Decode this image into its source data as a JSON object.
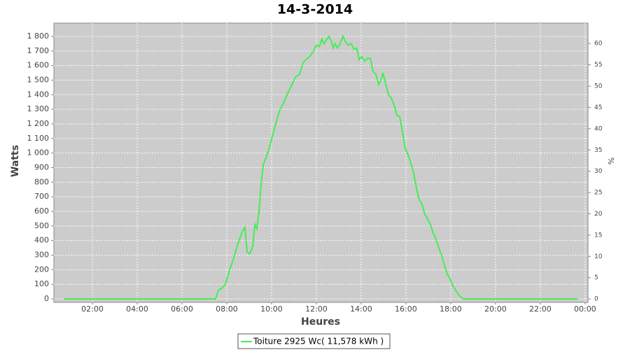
{
  "chart_data": {
    "type": "line",
    "title": "14-3-2014",
    "xlabel": "Heures",
    "ylabel": "Watts",
    "y2label": "%",
    "x": [
      0.72,
      7.5,
      7.63,
      7.75,
      7.94,
      8.13,
      8.31,
      8.5,
      8.69,
      8.81,
      8.91,
      9.03,
      9.16,
      9.25,
      9.34,
      9.44,
      9.53,
      9.63,
      9.78,
      9.91,
      10.06,
      10.22,
      10.38,
      10.53,
      10.69,
      10.88,
      11.06,
      11.25,
      11.41,
      11.53,
      11.69,
      11.88,
      12.0,
      12.13,
      12.25,
      12.34,
      12.47,
      12.56,
      12.66,
      12.75,
      12.84,
      12.94,
      13.06,
      13.19,
      13.31,
      13.44,
      13.56,
      13.69,
      13.81,
      13.91,
      14.03,
      14.16,
      14.28,
      14.41,
      14.53,
      14.66,
      14.78,
      14.91,
      14.97,
      15.09,
      15.22,
      15.34,
      15.47,
      15.59,
      15.72,
      15.84,
      15.97,
      16.09,
      16.22,
      16.34,
      16.47,
      16.59,
      16.72,
      16.84,
      16.97,
      17.09,
      17.22,
      17.34,
      17.47,
      17.59,
      17.72,
      17.84,
      17.97,
      18.09,
      18.22,
      18.34,
      18.47,
      18.59,
      23.69
    ],
    "series": [
      {
        "name": "Toiture 2925 Wc( 11,578 kWh )",
        "color": "#44ee55",
        "values": [
          0,
          0,
          60,
          70,
          100,
          200,
          280,
          380,
          460,
          490,
          320,
          310,
          360,
          510,
          480,
          600,
          780,
          920,
          980,
          1040,
          1130,
          1220,
          1300,
          1340,
          1400,
          1460,
          1520,
          1540,
          1620,
          1640,
          1660,
          1700,
          1740,
          1730,
          1780,
          1750,
          1780,
          1800,
          1770,
          1720,
          1750,
          1720,
          1750,
          1800,
          1760,
          1740,
          1750,
          1710,
          1720,
          1640,
          1660,
          1630,
          1650,
          1650,
          1560,
          1540,
          1470,
          1510,
          1550,
          1480,
          1400,
          1380,
          1330,
          1260,
          1250,
          1150,
          1030,
          990,
          930,
          870,
          760,
          680,
          650,
          580,
          550,
          510,
          450,
          410,
          350,
          300,
          230,
          170,
          140,
          90,
          60,
          30,
          10,
          0,
          0
        ]
      }
    ],
    "xlim": [
      0.28,
      24.13
    ],
    "xticks": [
      {
        "value": 2,
        "label": "02:00"
      },
      {
        "value": 4,
        "label": "04:00"
      },
      {
        "value": 6,
        "label": "06:00"
      },
      {
        "value": 8,
        "label": "08:00"
      },
      {
        "value": 10,
        "label": "10:00"
      },
      {
        "value": 12,
        "label": "12:00"
      },
      {
        "value": 14,
        "label": "14:00"
      },
      {
        "value": 16,
        "label": "16:00"
      },
      {
        "value": 18,
        "label": "18:00"
      },
      {
        "value": 20,
        "label": "20:00"
      },
      {
        "value": 22,
        "label": "22:00"
      },
      {
        "value": 24,
        "label": "00:00"
      }
    ],
    "ylim": [
      -24,
      1891
    ],
    "yticks": [
      0,
      100,
      200,
      300,
      400,
      500,
      600,
      700,
      800,
      900,
      {
        "value": 1000,
        "label": "1 000"
      },
      {
        "value": 1100,
        "label": "1 100"
      },
      {
        "value": 1200,
        "label": "1 200"
      },
      {
        "value": 1300,
        "label": "1 300"
      },
      {
        "value": 1400,
        "label": "1 400"
      },
      {
        "value": 1500,
        "label": "1 500"
      },
      {
        "value": 1600,
        "label": "1 600"
      },
      {
        "value": 1700,
        "label": "1 700"
      },
      {
        "value": 1800,
        "label": "1 800"
      }
    ],
    "y2lim": [
      -0.8,
      64.8
    ],
    "y2ticks": [
      0,
      5,
      10,
      15,
      20,
      25,
      30,
      35,
      40,
      45,
      50,
      55,
      60
    ],
    "grid": true,
    "legend": "bottom"
  }
}
